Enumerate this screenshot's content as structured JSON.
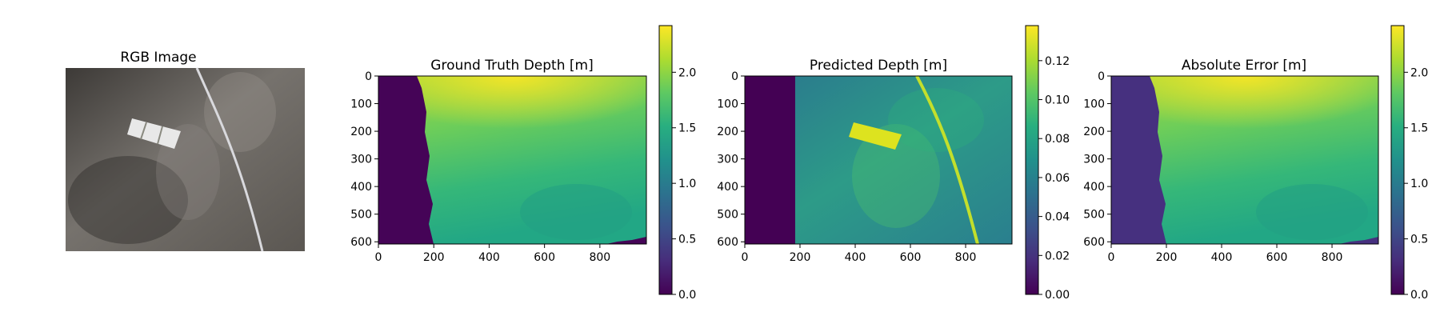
{
  "figure": {
    "panels": [
      {
        "title": "RGB Image"
      },
      {
        "title": "Ground Truth Depth [m]"
      },
      {
        "title": "Predicted Depth [m]"
      },
      {
        "title": "Absolute Error [m]"
      }
    ]
  },
  "chart_data": [
    {
      "type": "image",
      "title": "RGB Image",
      "content": "underwater photograph: sandy seabed with a measuring tape and a small calibration board"
    },
    {
      "type": "heatmap",
      "title": "Ground Truth Depth [m]",
      "colormap": "viridis",
      "x_ticks": [
        0,
        200,
        400,
        600,
        800
      ],
      "y_ticks": [
        0,
        100,
        200,
        300,
        400,
        500,
        600
      ],
      "xlim": [
        0,
        968
      ],
      "ylim": [
        608,
        0
      ],
      "colorbar": {
        "ticks": [
          0.0,
          0.5,
          1.0,
          1.5,
          2.0
        ],
        "tick_labels": [
          "0.0",
          "0.5",
          "1.0",
          "1.5",
          "2.0"
        ],
        "range": [
          0.0,
          2.42
        ]
      }
    },
    {
      "type": "heatmap",
      "title": "Predicted Depth [m]",
      "colormap": "viridis",
      "x_ticks": [
        0,
        200,
        400,
        600,
        800
      ],
      "y_ticks": [
        0,
        100,
        200,
        300,
        400,
        500,
        600
      ],
      "xlim": [
        0,
        968
      ],
      "ylim": [
        608,
        0
      ],
      "colorbar": {
        "ticks": [
          0.0,
          0.02,
          0.04,
          0.06,
          0.08,
          0.1,
          0.12
        ],
        "tick_labels": [
          "0.00",
          "0.02",
          "0.04",
          "0.06",
          "0.08",
          "0.10",
          "0.12"
        ],
        "range": [
          0.0,
          0.138
        ]
      }
    },
    {
      "type": "heatmap",
      "title": "Absolute Error [m]",
      "colormap": "viridis",
      "x_ticks": [
        0,
        200,
        400,
        600,
        800
      ],
      "y_ticks": [
        0,
        100,
        200,
        300,
        400,
        500,
        600
      ],
      "xlim": [
        0,
        968
      ],
      "ylim": [
        608,
        0
      ],
      "colorbar": {
        "ticks": [
          0.0,
          0.5,
          1.0,
          1.5,
          2.0
        ],
        "tick_labels": [
          "0.0",
          "0.5",
          "1.0",
          "1.5",
          "2.0"
        ],
        "range": [
          0.0,
          2.42
        ]
      }
    }
  ]
}
